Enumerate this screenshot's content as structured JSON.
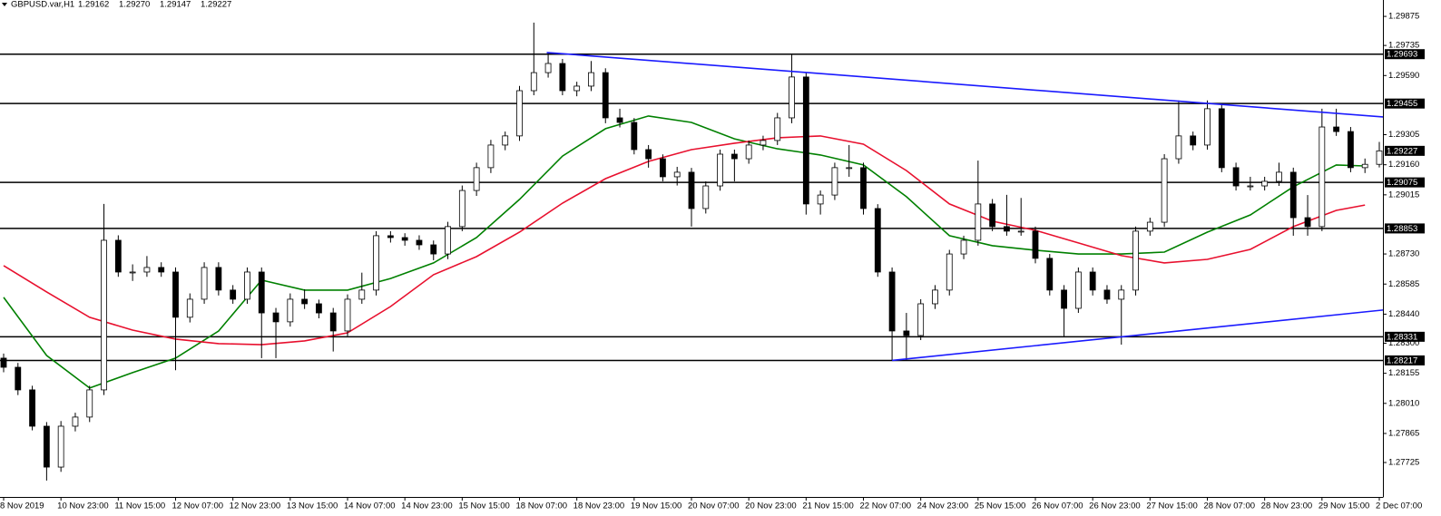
{
  "chart_data": {
    "type": "candlestick",
    "title": "GBPUSD.var,H1",
    "header_quotes": [
      "1.29162",
      "1.29270",
      "1.29147",
      "1.29227"
    ],
    "categories": [
      "8 Nov 2019",
      null,
      null,
      null,
      "10 Nov 23:00",
      null,
      null,
      null,
      "11 Nov 15:00",
      null,
      null,
      null,
      "12 Nov 07:00",
      null,
      null,
      null,
      "12 Nov 23:00",
      null,
      null,
      null,
      "13 Nov 15:00",
      null,
      null,
      null,
      "14 Nov 07:00",
      null,
      null,
      null,
      "14 Nov 23:00",
      null,
      null,
      null,
      "15 Nov 15:00",
      null,
      null,
      null,
      "18 Nov 07:00",
      null,
      null,
      null,
      "18 Nov 23:00",
      null,
      null,
      null,
      "19 Nov 15:00",
      null,
      null,
      null,
      "20 Nov 07:00",
      null,
      null,
      null,
      "20 Nov 23:00",
      null,
      null,
      null,
      "21 Nov 15:00",
      null,
      null,
      null,
      "22 Nov 07:00",
      null,
      null,
      null,
      "24 Nov 23:00",
      null,
      null,
      null,
      "25 Nov 15:00",
      null,
      null,
      null,
      "26 Nov 07:00",
      null,
      null,
      null,
      "26 Nov 23:00",
      null,
      null,
      null,
      "27 Nov 15:00",
      null,
      null,
      null,
      "28 Nov 07:00",
      null,
      null,
      null,
      "28 Nov 23:00",
      null,
      null,
      null,
      "29 Nov 15:00",
      null,
      null,
      null,
      "2 Dec 07:00"
    ],
    "ohlc": [
      [
        1.28228,
        1.2825,
        1.2816,
        1.28184
      ],
      [
        1.28184,
        1.28205,
        1.2805,
        1.28075
      ],
      [
        1.28075,
        1.28095,
        1.2788,
        1.279
      ],
      [
        1.279,
        1.2792,
        1.27638,
        1.27703
      ],
      [
        1.27703,
        1.27925,
        1.2768,
        1.279
      ],
      [
        1.279,
        1.27965,
        1.27875,
        1.27944
      ],
      [
        1.27944,
        1.28095,
        1.2792,
        1.28075
      ],
      [
        1.28075,
        1.28971,
        1.2805,
        1.28796
      ],
      [
        1.28796,
        1.2882,
        1.2862,
        1.28643
      ],
      [
        1.28643,
        1.2868,
        1.286,
        1.28643
      ],
      [
        1.28643,
        1.2872,
        1.2862,
        1.28665
      ],
      [
        1.28665,
        1.2869,
        1.2862,
        1.28643
      ],
      [
        1.28643,
        1.28665,
        1.2817,
        1.28425
      ],
      [
        1.28425,
        1.2854,
        1.284,
        1.28512
      ],
      [
        1.28512,
        1.2869,
        1.2849,
        1.28665
      ],
      [
        1.28665,
        1.2869,
        1.2853,
        1.28556
      ],
      [
        1.28556,
        1.2858,
        1.2849,
        1.28512
      ],
      [
        1.28512,
        1.28665,
        1.2849,
        1.28643
      ],
      [
        1.28643,
        1.28665,
        1.28228,
        1.28446
      ],
      [
        1.28446,
        1.2847,
        1.28228,
        1.28403
      ],
      [
        1.28403,
        1.2854,
        1.2838,
        1.28512
      ],
      [
        1.28512,
        1.2856,
        1.28465,
        1.2849
      ],
      [
        1.2849,
        1.2851,
        1.2842,
        1.28446
      ],
      [
        1.28446,
        1.2847,
        1.2826,
        1.28359
      ],
      [
        1.28359,
        1.28535,
        1.28335,
        1.28512
      ],
      [
        1.28512,
        1.2864,
        1.2849,
        1.28556
      ],
      [
        1.28556,
        1.2884,
        1.2853,
        1.28818
      ],
      [
        1.28818,
        1.2884,
        1.28785,
        1.28809
      ],
      [
        1.28809,
        1.2883,
        1.2877,
        1.28796
      ],
      [
        1.28796,
        1.2882,
        1.2875,
        1.28774
      ],
      [
        1.28774,
        1.28795,
        1.287,
        1.2873
      ],
      [
        1.2873,
        1.28885,
        1.28705,
        1.28862
      ],
      [
        1.28862,
        1.2906,
        1.2884,
        1.29036
      ],
      [
        1.29036,
        1.2917,
        1.2901,
        1.29146
      ],
      [
        1.29146,
        1.2928,
        1.2912,
        1.29255
      ],
      [
        1.29255,
        1.2932,
        1.2923,
        1.29299
      ],
      [
        1.29299,
        1.2954,
        1.29275,
        1.29517
      ],
      [
        1.29517,
        1.29845,
        1.29495,
        1.29604
      ],
      [
        1.29604,
        1.29701,
        1.2958,
        1.29648
      ],
      [
        1.29648,
        1.2967,
        1.29495,
        1.29517
      ],
      [
        1.29517,
        1.2956,
        1.2949,
        1.29539
      ],
      [
        1.29539,
        1.2966,
        1.29515,
        1.29604
      ],
      [
        1.29604,
        1.29625,
        1.2936,
        1.29386
      ],
      [
        1.29386,
        1.2943,
        1.2934,
        1.29364
      ],
      [
        1.29364,
        1.29385,
        1.2921,
        1.29233
      ],
      [
        1.29233,
        1.29255,
        1.29146,
        1.29189
      ],
      [
        1.29189,
        1.2921,
        1.2908,
        1.29102
      ],
      [
        1.29102,
        1.2915,
        1.2906,
        1.29124
      ],
      [
        1.29124,
        1.29145,
        1.28862,
        1.28949
      ],
      [
        1.28949,
        1.2908,
        1.28925,
        1.29058
      ],
      [
        1.29058,
        1.29233,
        1.29035,
        1.29211
      ],
      [
        1.29211,
        1.29233,
        1.2908,
        1.29189
      ],
      [
        1.29189,
        1.29277,
        1.29165,
        1.29255
      ],
      [
        1.29255,
        1.293,
        1.2923,
        1.29277
      ],
      [
        1.29277,
        1.2941,
        1.29255,
        1.29386
      ],
      [
        1.29386,
        1.29692,
        1.2936,
        1.29583
      ],
      [
        1.29583,
        1.29605,
        1.2892,
        1.28971
      ],
      [
        1.28971,
        1.29036,
        1.2892,
        1.29014
      ],
      [
        1.29014,
        1.2917,
        1.2899,
        1.29146
      ],
      [
        1.29146,
        1.29255,
        1.29102,
        1.29146
      ],
      [
        1.29146,
        1.2917,
        1.2892,
        1.28949
      ],
      [
        1.28949,
        1.2897,
        1.2862,
        1.28643
      ],
      [
        1.28643,
        1.28665,
        1.28217,
        1.28359
      ],
      [
        1.28359,
        1.28446,
        1.28217,
        1.28337
      ],
      [
        1.28337,
        1.28512,
        1.28315,
        1.2849
      ],
      [
        1.2849,
        1.2858,
        1.28465,
        1.28556
      ],
      [
        1.28556,
        1.2875,
        1.2853,
        1.2873
      ],
      [
        1.2873,
        1.28818,
        1.28705,
        1.28796
      ],
      [
        1.28796,
        1.2918,
        1.2877,
        1.28971
      ],
      [
        1.28971,
        1.28995,
        1.2884,
        1.28862
      ],
      [
        1.28862,
        1.29015,
        1.28818,
        1.2884
      ],
      [
        1.2884,
        1.29,
        1.28818,
        1.2884
      ],
      [
        1.2884,
        1.28862,
        1.28685,
        1.28709
      ],
      [
        1.28709,
        1.2873,
        1.2853,
        1.28556
      ],
      [
        1.28556,
        1.2858,
        1.28331,
        1.28468
      ],
      [
        1.28468,
        1.28665,
        1.28446,
        1.28643
      ],
      [
        1.28643,
        1.28665,
        1.2853,
        1.28556
      ],
      [
        1.28556,
        1.2858,
        1.2849,
        1.28512
      ],
      [
        1.28512,
        1.2858,
        1.28293,
        1.28556
      ],
      [
        1.28556,
        1.28862,
        1.2853,
        1.2884
      ],
      [
        1.2884,
        1.28905,
        1.28818,
        1.28883
      ],
      [
        1.28883,
        1.29211,
        1.2886,
        1.29189
      ],
      [
        1.29189,
        1.2947,
        1.29165,
        1.29299
      ],
      [
        1.29299,
        1.2932,
        1.2923,
        1.29255
      ],
      [
        1.29255,
        1.2947,
        1.29233,
        1.2943
      ],
      [
        1.2943,
        1.29455,
        1.29124,
        1.29146
      ],
      [
        1.29146,
        1.2917,
        1.29036,
        1.29058
      ],
      [
        1.29058,
        1.29102,
        1.29036,
        1.29058
      ],
      [
        1.29058,
        1.29102,
        1.29036,
        1.2908
      ],
      [
        1.2908,
        1.2917,
        1.29058,
        1.29124
      ],
      [
        1.29124,
        1.29146,
        1.28818,
        1.28905
      ],
      [
        1.28905,
        1.29014,
        1.28818,
        1.28862
      ],
      [
        1.28862,
        1.2943,
        1.2884,
        1.29342
      ],
      [
        1.29342,
        1.2943,
        1.29299,
        1.2932
      ],
      [
        1.2932,
        1.29342,
        1.29124,
        1.29146
      ],
      [
        1.29146,
        1.2919,
        1.2912,
        1.29162
      ],
      [
        1.29162,
        1.2927,
        1.29147,
        1.29227
      ]
    ],
    "moving_averages": [
      {
        "color": "#008000",
        "x": [
          0,
          3,
          6,
          9,
          12,
          15,
          18,
          21,
          24,
          27,
          30,
          33,
          36,
          39,
          42,
          45,
          48,
          51,
          54,
          57,
          60,
          63,
          66,
          69,
          72,
          75,
          78,
          81,
          84,
          87,
          90,
          93,
          95
        ],
        "values": [
          1.28521,
          1.28241,
          1.28084,
          1.28158,
          1.28228,
          1.28359,
          1.28604,
          1.28556,
          1.28556,
          1.28612,
          1.28687,
          1.28809,
          1.28993,
          1.29202,
          1.29334,
          1.29395,
          1.29364,
          1.29285,
          1.29237,
          1.29207,
          1.29159,
          1.29006,
          1.28818,
          1.2877,
          1.28748,
          1.2873,
          1.2873,
          1.28739,
          1.28835,
          1.28918,
          1.29054,
          1.29159,
          1.29154
        ]
      },
      {
        "color": "#e8102e",
        "x": [
          0,
          3,
          6,
          9,
          12,
          15,
          18,
          21,
          24,
          27,
          30,
          33,
          36,
          39,
          42,
          45,
          48,
          51,
          54,
          57,
          60,
          63,
          66,
          69,
          72,
          75,
          78,
          81,
          84,
          87,
          90,
          93,
          95
        ],
        "values": [
          1.28674,
          1.28547,
          1.28425,
          1.28363,
          1.2832,
          1.28298,
          1.28293,
          1.28311,
          1.2835,
          1.28477,
          1.2863,
          1.28717,
          1.28835,
          1.28975,
          1.29093,
          1.29176,
          1.29233,
          1.29264,
          1.2929,
          1.29299,
          1.29259,
          1.29132,
          1.28971,
          1.28888,
          1.28844,
          1.28783,
          1.28722,
          1.28687,
          1.28704,
          1.28752,
          1.28862,
          1.2894,
          1.28966
        ]
      }
    ],
    "trend_lines": [
      {
        "color": "#1a1aff",
        "x": [
          37.9,
          96.3
        ],
        "values": [
          1.29701,
          1.2939
        ]
      },
      {
        "color": "#1a1aff",
        "x": [
          62.0,
          96.3
        ],
        "values": [
          1.28217,
          1.2846
        ]
      }
    ],
    "levels": [
      1.29693,
      1.29455,
      1.29075,
      1.28853,
      1.28331,
      1.28217
    ],
    "current_price": 1.29227,
    "ylim": [
      1.27559,
      1.29954
    ],
    "yticks": [
      1.29875,
      1.29735,
      {
        "value": 1.2959,
        "label": "1.29590"
      },
      1.29305,
      {
        "value": 1.2916,
        "label": "1.29160"
      },
      1.29015,
      {
        "value": 1.2873,
        "label": "1.28730"
      },
      1.28585,
      {
        "value": 1.2844,
        "label": "1.28440"
      },
      {
        "value": 1.283,
        "label": "1.28300"
      },
      1.28155,
      {
        "value": 1.2801,
        "label": "1.28010"
      },
      1.27865,
      1.27725
    ],
    "grid": false,
    "bull_color": "#ffffff",
    "bear_color": "#000000"
  }
}
